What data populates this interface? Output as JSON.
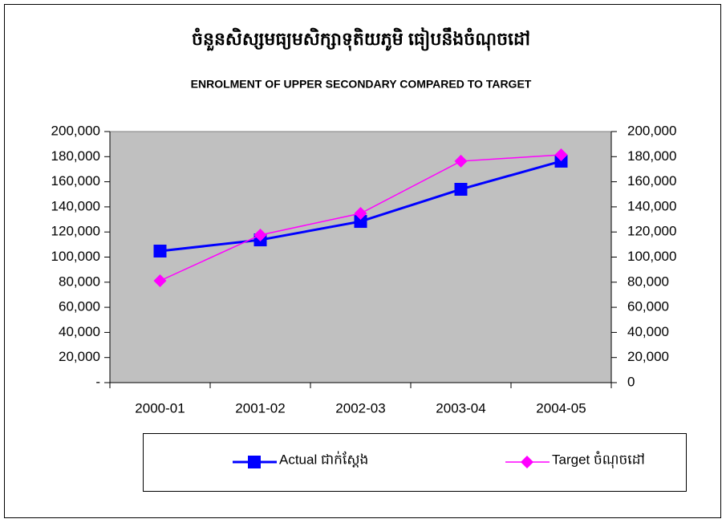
{
  "chart_data": {
    "type": "line",
    "title": "ចំនួនសិស្សមធ្យមសិក្សាទុតិយភូមិ  ធៀបនឹងចំណុចដៅ",
    "subtitle": "ENROLMENT OF UPPER SECONDARY COMPARED TO TARGET",
    "categories": [
      "2000-01",
      "2001-02",
      "2002-03",
      "2003-04",
      "2004-05"
    ],
    "series": [
      {
        "name": "Actual ជាក់ស្តែង",
        "color": "#0000ff",
        "marker": "square",
        "values": [
          104800,
          113700,
          128400,
          154000,
          176400
        ]
      },
      {
        "name": "Target ចំណុចដៅ",
        "color": "#ff00ff",
        "marker": "diamond",
        "values": [
          81150,
          117600,
          134800,
          176400,
          181500
        ]
      }
    ],
    "ylim": [
      0,
      200000
    ],
    "yticks": [
      {
        "value": 0,
        "label": "-"
      },
      {
        "value": 20000,
        "label": "20,000"
      },
      {
        "value": 40000,
        "label": "40,000"
      },
      {
        "value": 60000,
        "label": "60,000"
      },
      {
        "value": 80000,
        "label": "80,000"
      },
      {
        "value": 100000,
        "label": "100,000"
      },
      {
        "value": 120000,
        "label": "120,000"
      },
      {
        "value": 140000,
        "label": "140,000"
      },
      {
        "value": 160000,
        "label": "160,000"
      },
      {
        "value": 180000,
        "label": "180,000"
      },
      {
        "value": 200000,
        "label": "200,000"
      }
    ],
    "y2lim": [
      0,
      200000
    ],
    "y2ticks": [
      0,
      {
        "value": 20000,
        "label": "20,000"
      },
      {
        "value": 40000,
        "label": "40,000"
      },
      {
        "value": 60000,
        "label": "60,000"
      },
      {
        "value": 80000,
        "label": "80,000"
      },
      {
        "value": 100000,
        "label": "100,000"
      },
      {
        "value": 120000,
        "label": "120,000"
      },
      {
        "value": 140000,
        "label": "140,000"
      },
      {
        "value": 160000,
        "label": "160,000"
      },
      {
        "value": 180000,
        "label": "180,000"
      },
      {
        "value": 200000,
        "label": "200,000"
      }
    ],
    "plot_background": "#c0c0c0",
    "legend": "bottom"
  }
}
